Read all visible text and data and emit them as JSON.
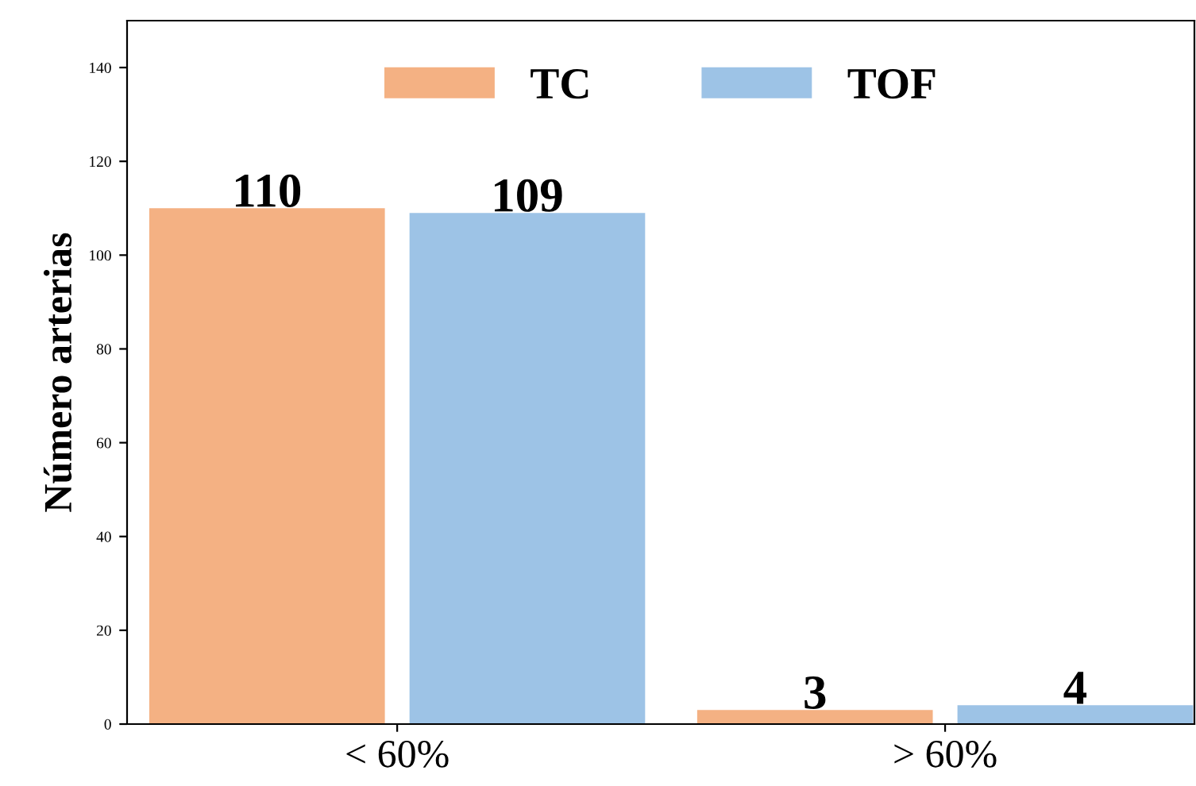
{
  "chart_data": {
    "type": "bar",
    "ylabel": "Número arterias",
    "categories": [
      "< 60%",
      "> 60%"
    ],
    "series": [
      {
        "name": "TC",
        "color": "#f4b183",
        "values": [
          110,
          3
        ]
      },
      {
        "name": "TOF",
        "color": "#9dc3e6",
        "values": [
          109,
          4
        ]
      }
    ],
    "ylim": [
      0,
      150
    ],
    "yticks": [
      0,
      20,
      40,
      60,
      80,
      100,
      120,
      140
    ],
    "data_labels": true,
    "legend": "top",
    "grid": false
  }
}
